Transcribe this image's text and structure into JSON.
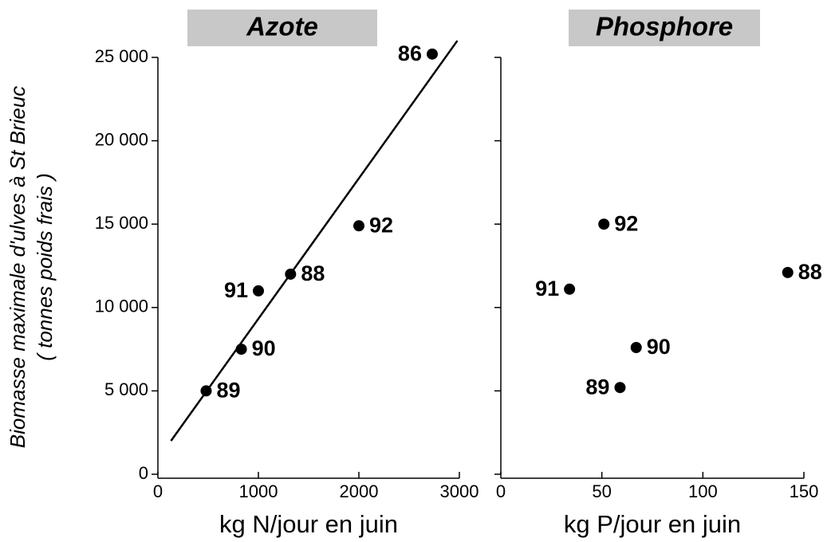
{
  "chart_data": [
    {
      "type": "scatter",
      "title": "Azote",
      "xlabel": "kg N/jour en juin",
      "ylabel": [
        "Biomasse maximale d'ulves à St Brieuc",
        "( tonnes poids frais )"
      ],
      "x": [
        2730,
        2000,
        1320,
        1000,
        830,
        480
      ],
      "y": [
        25200,
        14900,
        12000,
        11000,
        7500,
        5000
      ],
      "labels": [
        "86",
        "92",
        "88",
        "91",
        "90",
        "89"
      ],
      "label_side": [
        "left",
        "right",
        "right",
        "left",
        "right",
        "right"
      ],
      "color": "#000000",
      "trendline": {
        "x": [
          130,
          2980
        ],
        "y": [
          2000,
          26000
        ]
      },
      "xlim": [
        0,
        3000
      ],
      "xticks": [
        0,
        1000,
        2000,
        3000
      ],
      "ylim": [
        0,
        25000
      ],
      "yticks": [
        0,
        {
          "value": 5000,
          "label": "5 000"
        },
        {
          "value": 10000,
          "label": "10 000"
        },
        {
          "value": 15000,
          "label": "15 000"
        },
        {
          "value": 20000,
          "label": "20 000"
        },
        {
          "value": 25000,
          "label": "25 000"
        }
      ],
      "show_ytick_labels": true
    },
    {
      "type": "scatter",
      "title": "Phosphore",
      "xlabel": "kg P/jour en juin",
      "x": [
        51,
        34,
        142,
        67,
        59
      ],
      "y": [
        15000,
        11100,
        12100,
        7600,
        5200
      ],
      "labels": [
        "92",
        "91",
        "88",
        "90",
        "89"
      ],
      "label_side": [
        "right",
        "left",
        "right",
        "right",
        "left"
      ],
      "color": "#000000",
      "xlim": [
        0,
        150
      ],
      "xticks": [
        0,
        50,
        100,
        150
      ],
      "ylim": [
        0,
        25000
      ],
      "yticks": [
        0,
        5000,
        10000,
        15000,
        20000,
        25000
      ],
      "show_ytick_labels": false
    }
  ]
}
